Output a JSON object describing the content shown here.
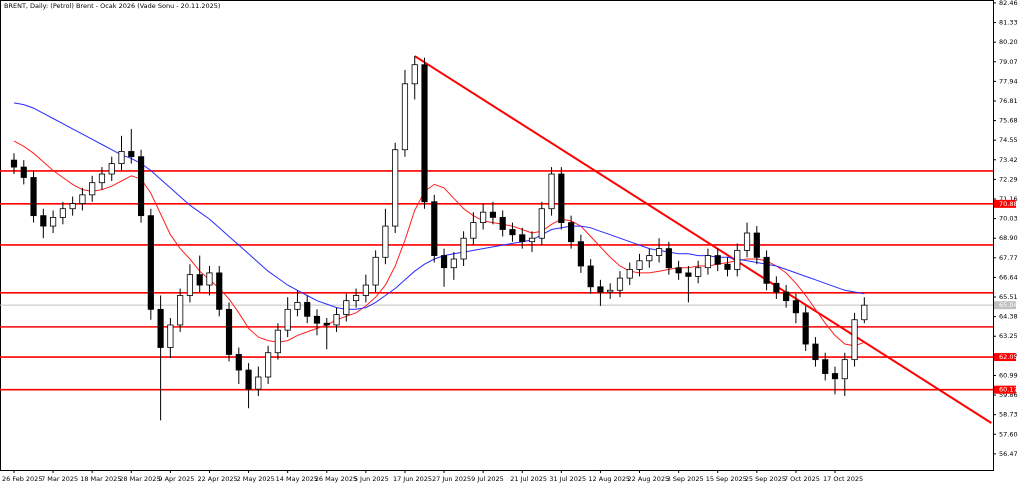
{
  "chart_data": {
    "type": "candlestick",
    "title": "BRENT, Daily: (Petrol) Brent - Ocak 2026 (Vade Sonu - 20.11.2025)",
    "categories": [
      "26 Feb 2025",
      null,
      null,
      null,
      "7 Mar 2025",
      null,
      null,
      null,
      "18 Mar 2025",
      null,
      null,
      null,
      "28 Mar 2025",
      null,
      null,
      null,
      "9 Apr 2025",
      null,
      null,
      null,
      "22 Apr 2025",
      null,
      null,
      null,
      "2 May 2025",
      null,
      null,
      null,
      "14 May 2025",
      null,
      null,
      null,
      "26 May 2025",
      null,
      null,
      null,
      "5 Jun 2025",
      null,
      null,
      null,
      "17 Jun 2025",
      null,
      null,
      null,
      "27 Jun 2025",
      null,
      null,
      null,
      "9 Jul 2025",
      null,
      null,
      null,
      "21 Jul 2025",
      null,
      null,
      null,
      "31 Jul 2025",
      null,
      null,
      null,
      "12 Aug 2025",
      null,
      null,
      null,
      "22 Aug 2025",
      null,
      null,
      null,
      "3 Sep 2025",
      null,
      null,
      null,
      "15 Sep 2025",
      null,
      null,
      null,
      "25 Sep 2025",
      null,
      null,
      null,
      "7 Oct 2025",
      null,
      null,
      null,
      "17 Oct 2025",
      null,
      null,
      null
    ],
    "open": [
      73.4,
      73.0,
      72.4,
      70.2,
      69.6,
      70.1,
      70.6,
      70.9,
      71.4,
      72.1,
      72.6,
      73.2,
      73.9,
      73.6,
      70.2,
      64.8,
      62.6,
      63.9,
      65.6,
      66.8,
      66.2,
      66.9,
      64.8,
      62.2,
      61.3,
      60.2,
      60.9,
      62.3,
      63.6,
      64.8,
      65.2,
      64.4,
      64.0,
      63.9,
      64.5,
      65.3,
      65.6,
      66.2,
      67.8,
      69.6,
      74.0,
      77.8,
      78.9,
      71.0,
      67.9,
      67.2,
      67.7,
      68.9,
      69.8,
      70.4,
      70.1,
      69.4,
      69.1,
      68.7,
      68.9,
      70.6,
      72.6,
      69.8,
      68.7,
      67.3,
      66.1,
      65.8,
      65.9,
      66.6,
      67.1,
      67.6,
      67.9,
      68.3,
      67.2,
      66.9,
      66.7,
      67.2,
      67.9,
      67.4,
      67.1,
      68.2,
      69.2,
      67.8,
      66.3,
      65.8,
      65.3,
      64.6,
      62.8,
      61.9,
      61.1,
      60.8,
      61.9,
      64.2
    ],
    "high": [
      73.8,
      73.4,
      72.8,
      70.6,
      70.5,
      71.0,
      71.3,
      71.8,
      72.5,
      73.0,
      73.6,
      74.8,
      75.2,
      74.0,
      70.6,
      65.6,
      64.3,
      66.0,
      67.4,
      67.9,
      67.3,
      67.3,
      65.2,
      62.6,
      61.7,
      61.5,
      62.7,
      64.0,
      65.5,
      65.9,
      65.6,
      64.8,
      64.3,
      64.9,
      65.7,
      66.0,
      66.8,
      68.2,
      70.6,
      74.4,
      78.6,
      79.4,
      79.3,
      71.4,
      68.3,
      68.1,
      69.3,
      70.4,
      70.9,
      71.0,
      70.5,
      69.8,
      69.5,
      69.3,
      71.0,
      73.0,
      73.0,
      70.2,
      69.1,
      67.7,
      66.5,
      66.3,
      67.0,
      67.5,
      68.0,
      68.3,
      68.9,
      68.7,
      67.6,
      67.3,
      67.6,
      68.3,
      68.3,
      67.8,
      68.6,
      69.8,
      69.6,
      68.2,
      66.7,
      66.2,
      65.7,
      65.0,
      63.2,
      62.3,
      61.5,
      62.3,
      64.6,
      65.5
    ],
    "low": [
      72.6,
      72.0,
      69.8,
      68.9,
      69.2,
      69.7,
      70.2,
      70.5,
      71.0,
      71.7,
      72.2,
      72.8,
      73.2,
      69.8,
      64.2,
      58.4,
      62.0,
      63.5,
      65.2,
      65.8,
      65.6,
      64.4,
      61.8,
      60.5,
      59.1,
      59.8,
      60.5,
      61.9,
      63.2,
      64.4,
      64.0,
      63.3,
      62.5,
      63.5,
      64.1,
      64.9,
      65.2,
      65.8,
      67.4,
      69.2,
      73.6,
      76.9,
      70.6,
      67.5,
      66.1,
      66.5,
      67.3,
      68.5,
      69.4,
      69.7,
      69.0,
      68.7,
      68.3,
      68.1,
      68.5,
      70.2,
      69.4,
      68.3,
      66.9,
      65.7,
      65.0,
      65.4,
      65.5,
      66.2,
      66.7,
      67.2,
      67.5,
      66.8,
      66.5,
      65.2,
      66.3,
      66.8,
      67.0,
      66.7,
      66.7,
      67.8,
      67.4,
      65.9,
      65.4,
      64.9,
      64.0,
      62.4,
      61.5,
      60.7,
      59.9,
      59.8,
      61.5,
      64.0
    ],
    "close": [
      73.0,
      72.4,
      70.2,
      69.6,
      70.1,
      70.6,
      70.9,
      71.4,
      72.1,
      72.6,
      73.2,
      73.9,
      73.6,
      70.2,
      64.8,
      62.6,
      63.9,
      65.6,
      66.8,
      66.2,
      66.9,
      64.8,
      62.2,
      61.3,
      60.2,
      60.9,
      62.3,
      63.6,
      64.8,
      65.2,
      64.4,
      64.0,
      63.9,
      64.5,
      65.3,
      65.6,
      66.2,
      67.8,
      69.6,
      74.0,
      77.8,
      78.9,
      71.0,
      67.9,
      67.2,
      67.7,
      68.9,
      69.8,
      70.4,
      70.1,
      69.4,
      69.1,
      68.7,
      68.9,
      70.6,
      72.6,
      69.8,
      68.7,
      67.3,
      66.1,
      65.8,
      65.9,
      66.6,
      67.1,
      67.6,
      67.9,
      68.3,
      67.2,
      66.9,
      66.7,
      67.2,
      67.9,
      67.4,
      67.1,
      68.2,
      69.2,
      67.8,
      66.3,
      65.8,
      65.3,
      64.6,
      62.8,
      61.9,
      61.1,
      60.8,
      61.9,
      64.2,
      65.04
    ],
    "ma_lines": [
      {
        "color": "#ff2020",
        "values": [
          74.5,
          74.2,
          73.8,
          73.3,
          72.8,
          72.4,
          72.0,
          71.7,
          71.6,
          71.7,
          71.9,
          72.2,
          72.5,
          72.3,
          71.5,
          70.3,
          69.1,
          68.3,
          67.7,
          67.0,
          66.5,
          66.0,
          65.4,
          64.6,
          63.7,
          63.2,
          63.0,
          62.9,
          63.0,
          63.3,
          63.5,
          63.7,
          63.9,
          64.2,
          64.4,
          64.6,
          65.0,
          65.5,
          66.2,
          67.3,
          68.8,
          70.5,
          71.6,
          72.0,
          71.8,
          71.2,
          70.6,
          70.2,
          69.9,
          69.8,
          69.7,
          69.6,
          69.4,
          69.2,
          69.3,
          69.7,
          70.0,
          69.9,
          69.6,
          69.0,
          68.4,
          67.8,
          67.3,
          67.0,
          66.9,
          66.9,
          67.0,
          67.1,
          67.2,
          67.2,
          67.3,
          67.3,
          67.4,
          67.5,
          67.6,
          67.7,
          67.7,
          67.6,
          67.3,
          66.9,
          66.3,
          65.6,
          64.8,
          64.0,
          63.3,
          62.8,
          62.7,
          62.9
        ]
      },
      {
        "color": "#2a2aff",
        "values": [
          76.7,
          76.6,
          76.4,
          76.1,
          75.8,
          75.5,
          75.2,
          74.9,
          74.6,
          74.3,
          74.0,
          73.7,
          73.5,
          73.2,
          72.8,
          72.3,
          71.8,
          71.3,
          70.8,
          70.4,
          70.0,
          69.5,
          69.0,
          68.5,
          68.0,
          67.5,
          67.0,
          66.6,
          66.2,
          65.9,
          65.6,
          65.3,
          65.1,
          64.9,
          64.8,
          64.8,
          64.9,
          65.2,
          65.6,
          66.0,
          66.5,
          67.0,
          67.4,
          67.7,
          67.9,
          68.0,
          68.1,
          68.2,
          68.3,
          68.4,
          68.5,
          68.6,
          68.7,
          68.8,
          69.1,
          69.4,
          69.5,
          69.6,
          69.6,
          69.5,
          69.3,
          69.1,
          68.9,
          68.7,
          68.5,
          68.3,
          68.2,
          68.1,
          68.0,
          68.0,
          67.9,
          67.9,
          67.8,
          67.8,
          67.7,
          67.6,
          67.5,
          67.4,
          67.3,
          67.1,
          66.9,
          66.7,
          66.5,
          66.3,
          66.1,
          65.9,
          65.8,
          65.7
        ]
      }
    ],
    "levels": [
      72.78,
      70.88,
      68.51,
      65.75,
      63.79,
      62.05,
      60.17
    ],
    "level_color": "#ff0000",
    "axis_labels": [
      70.88,
      62.05,
      60.17
    ],
    "last_price": 65.04,
    "trendline": {
      "x": [
        41,
        100
      ],
      "values": [
        79.4,
        58.25
      ]
    },
    "ylim": [
      55.54,
      82.63
    ],
    "yticks": [
      82.46,
      81.33,
      {
        "value": 80.2,
        "label": "80.20"
      },
      79.07,
      77.94,
      76.81,
      75.68,
      74.55,
      73.42,
      72.29,
      71.16,
      70.03,
      {
        "value": 68.9,
        "label": "68.90"
      },
      67.77,
      66.64,
      65.51,
      64.38,
      63.25,
      62.12,
      60.99,
      59.86,
      58.73,
      {
        "value": 57.6,
        "label": "57.60"
      },
      56.47
    ]
  }
}
